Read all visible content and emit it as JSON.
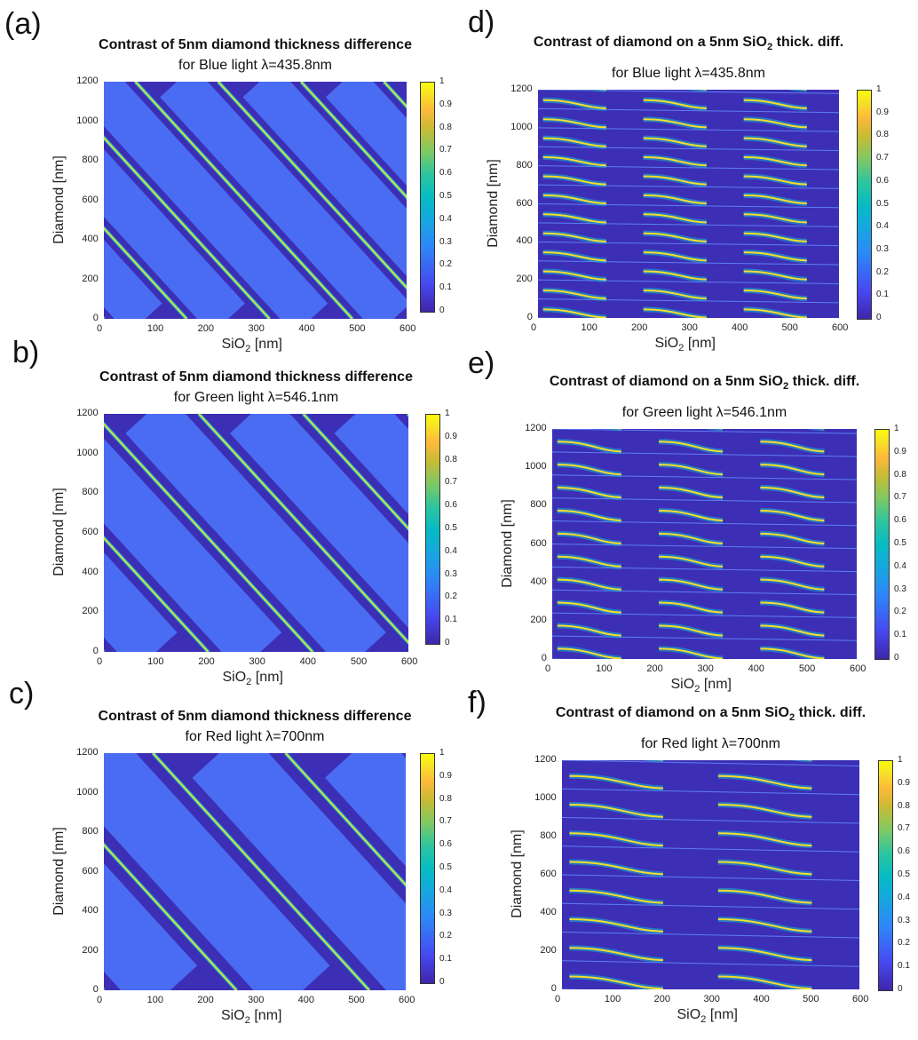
{
  "panels": [
    {
      "label": "(a)",
      "title": "Contrast of 5nm diamond thickness difference",
      "subtitle": "for Blue light λ=435.8nm",
      "kind": "stripe",
      "wavelength_nm": 435.8
    },
    {
      "label": "b)",
      "title": "Contrast of 5nm diamond thickness difference",
      "subtitle": "for Green light λ=546.1nm",
      "kind": "stripe",
      "wavelength_nm": 546.1
    },
    {
      "label": "c)",
      "title": "Contrast of 5nm diamond thickness difference",
      "subtitle": "for Red light λ=700nm",
      "kind": "stripe",
      "wavelength_nm": 700
    },
    {
      "label": "d)",
      "title_pre": "Contrast of diamond on a 5nm SiO",
      "title_sub": "2",
      "title_post": " thick. diff.",
      "subtitle": "for Blue light λ=435.8nm",
      "kind": "band",
      "wavelength_nm": 435.8
    },
    {
      "label": "e)",
      "title_pre": "Contrast of diamond on a 5nm SiO",
      "title_sub": "2",
      "title_post": " thick. diff.",
      "subtitle": "for Green light λ=546.1nm",
      "kind": "band",
      "wavelength_nm": 546.1
    },
    {
      "label": "f)",
      "title_pre": "Contrast of diamond on a 5nm SiO",
      "title_sub": "2",
      "title_post": " thick. diff.",
      "subtitle": "for Red light λ=700nm",
      "kind": "band",
      "wavelength_nm": 700
    }
  ],
  "axes": {
    "ylabel": "Diamond [nm]",
    "xlabel_pre": "SiO",
    "xlabel_sub": "2",
    "xlabel_post": " [nm]",
    "xticks": [
      "0",
      "100",
      "200",
      "300",
      "400",
      "500",
      "600"
    ],
    "yticks": [
      "0",
      "200",
      "400",
      "600",
      "800",
      "1000",
      "1200"
    ],
    "cbticks": [
      "0",
      "0.1",
      "0.2",
      "0.3",
      "0.4",
      "0.5",
      "0.6",
      "0.7",
      "0.8",
      "0.9",
      "1"
    ]
  },
  "chart_data": [
    {
      "type": "heatmap",
      "title": "Contrast of 5nm diamond thickness difference",
      "subtitle": "for Blue light λ=435.8nm",
      "xlabel": "SiO2 [nm]",
      "ylabel": "Diamond [nm]",
      "xlim": [
        0,
        600
      ],
      "ylim": [
        0,
        1200
      ],
      "clim": [
        0,
        1
      ],
      "colormap": "parula"
    },
    {
      "type": "heatmap",
      "title": "Contrast of 5nm diamond thickness difference",
      "subtitle": "for Green light λ=546.1nm",
      "xlabel": "SiO2 [nm]",
      "ylabel": "Diamond [nm]",
      "xlim": [
        0,
        600
      ],
      "ylim": [
        0,
        1200
      ],
      "clim": [
        0,
        1
      ],
      "colormap": "parula"
    },
    {
      "type": "heatmap",
      "title": "Contrast of 5nm diamond thickness difference",
      "subtitle": "for Red light λ=700nm",
      "xlabel": "SiO2 [nm]",
      "ylabel": "Diamond [nm]",
      "xlim": [
        0,
        600
      ],
      "ylim": [
        0,
        1200
      ],
      "clim": [
        0,
        1
      ],
      "colormap": "parula"
    },
    {
      "type": "heatmap",
      "title": "Contrast of diamond on a 5nm SiO2 thick. diff.",
      "subtitle": "for Blue light λ=435.8nm",
      "xlabel": "SiO2 [nm]",
      "ylabel": "Diamond [nm]",
      "xlim": [
        0,
        600
      ],
      "ylim": [
        0,
        1200
      ],
      "clim": [
        0,
        1
      ],
      "colormap": "parula"
    },
    {
      "type": "heatmap",
      "title": "Contrast of diamond on a 5nm SiO2 thick. diff.",
      "subtitle": "for Green light λ=546.1nm",
      "xlabel": "SiO2 [nm]",
      "ylabel": "Diamond [nm]",
      "xlim": [
        0,
        600
      ],
      "ylim": [
        0,
        1200
      ],
      "clim": [
        0,
        1
      ],
      "colormap": "parula"
    },
    {
      "type": "heatmap",
      "title": "Contrast of diamond on a 5nm SiO2 thick. diff.",
      "subtitle": "for Red light λ=700nm",
      "xlabel": "SiO2 [nm]",
      "ylabel": "Diamond [nm]",
      "xlim": [
        0,
        600
      ],
      "ylim": [
        0,
        1200
      ],
      "clim": [
        0,
        1
      ],
      "colormap": "parula"
    }
  ]
}
